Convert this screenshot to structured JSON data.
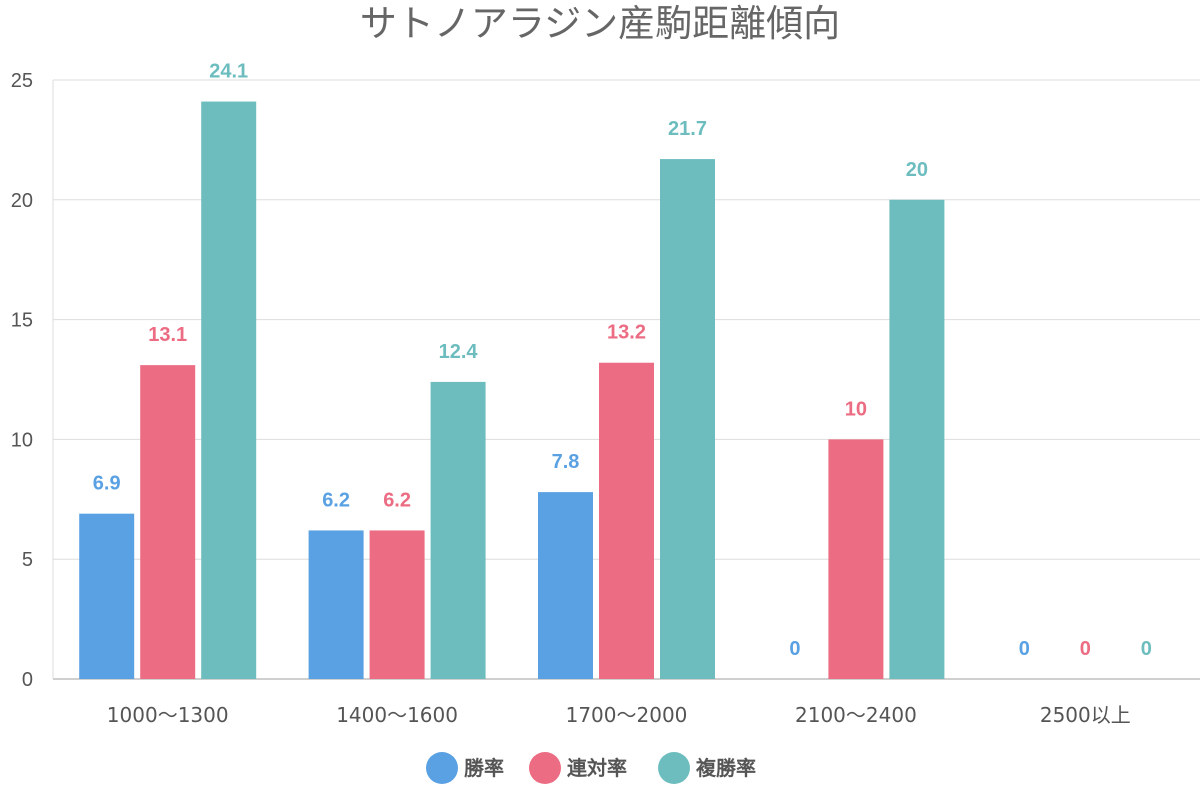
{
  "chart_data": {
    "type": "bar",
    "title": "サトノアラジン産駒距離傾向",
    "categories": [
      "1000〜1300",
      "1400〜1600",
      "1700〜2000",
      "2100〜2400",
      "2500以上"
    ],
    "series": [
      {
        "name": "勝率",
        "color": "#5aa1e3",
        "values": [
          6.9,
          6.2,
          7.8,
          0,
          0
        ]
      },
      {
        "name": "連対率",
        "color": "#ec6d83",
        "values": [
          13.1,
          6.2,
          13.2,
          10,
          0
        ]
      },
      {
        "name": "複勝率",
        "color": "#6dbdbf",
        "values": [
          24.1,
          12.4,
          21.7,
          20,
          0
        ]
      }
    ],
    "ylim": [
      0,
      25
    ],
    "yticks": [
      "0",
      "5",
      "10",
      "15",
      "20",
      "25"
    ],
    "xlabel": "",
    "ylabel": "",
    "grid": true,
    "legend_position": "bottom"
  }
}
